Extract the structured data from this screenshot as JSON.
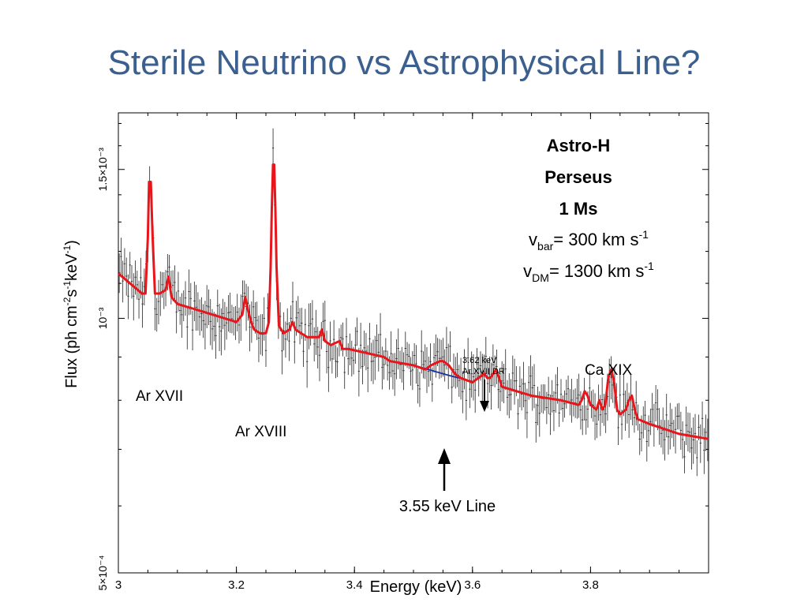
{
  "slide": {
    "title": "Sterile Neutrino vs Astrophysical Line?"
  },
  "info_box": {
    "line1": "Astro-H",
    "line2": "Perseus",
    "line3": "1 Ms",
    "v_bar": {
      "symbol": "v",
      "subscript": "bar",
      "value": "= 300 km s",
      "exponent": "-1"
    },
    "v_dm": {
      "symbol": "v",
      "subscript": "DM",
      "value": "= 1300 km s",
      "exponent": "-1"
    }
  },
  "colors": {
    "model": "#e8161b",
    "continuum": "#1a2fa8",
    "data": "#222222",
    "title": "#3b5f8e"
  },
  "chart_data": {
    "type": "line",
    "xlabel": "Energy (keV)",
    "ylabel": "Flux (ph cm-2 s-1 keV-1)",
    "ylabel_parts": {
      "a": "Flux (ph cm",
      "e1": "-2",
      "b": "s",
      "e2": "-1",
      "c": "keV",
      "e3": "-1",
      "d": ")"
    },
    "xlim": [
      3.0,
      4.0
    ],
    "ylim": [
      0.0005,
      0.00175
    ],
    "y_scale": "log",
    "x_ticks": [
      {
        "value": 3.0,
        "label": "3"
      },
      {
        "value": 3.2,
        "label": "3.2"
      },
      {
        "value": 3.4,
        "label": "3.4"
      },
      {
        "value": 3.6,
        "label": "3.6"
      },
      {
        "value": 3.8,
        "label": "3.8"
      }
    ],
    "y_ticks": [
      {
        "value": 0.0005,
        "label": "5×10⁻⁴"
      },
      {
        "value": 0.001,
        "label": "10⁻³"
      },
      {
        "value": 0.0015,
        "label": "1.5×10⁻³"
      }
    ],
    "series": [
      {
        "kind": "model",
        "x": [
          3.0,
          3.04,
          3.046,
          3.05,
          3.052,
          3.055,
          3.058,
          3.062,
          3.07,
          3.08,
          3.085,
          3.09,
          3.1,
          3.14,
          3.18,
          3.2,
          3.21,
          3.215,
          3.22,
          3.225,
          3.23,
          3.24,
          3.25,
          3.255,
          3.258,
          3.26,
          3.262,
          3.264,
          3.266,
          3.268,
          3.272,
          3.28,
          3.29,
          3.295,
          3.3,
          3.32,
          3.34,
          3.345,
          3.35,
          3.36,
          3.375,
          3.38,
          3.39,
          3.42,
          3.45,
          3.46,
          3.5,
          3.52,
          3.53,
          3.545,
          3.55,
          3.56,
          3.57,
          3.58,
          3.6,
          3.61,
          3.62,
          3.625,
          3.63,
          3.635,
          3.64,
          3.645,
          3.65,
          3.7,
          3.75,
          3.78,
          3.785,
          3.79,
          3.795,
          3.8,
          3.81,
          3.815,
          3.82,
          3.825,
          3.83,
          3.835,
          3.84,
          3.845,
          3.85,
          3.86,
          3.865,
          3.87,
          3.875,
          3.88,
          3.9,
          3.95,
          4.0
        ],
        "y": [
          0.00113,
          0.00107,
          0.00107,
          0.00125,
          0.00145,
          0.00145,
          0.00125,
          0.00107,
          0.00107,
          0.00108,
          0.00112,
          0.00106,
          0.00104,
          0.00102,
          0.001,
          0.00099,
          0.00101,
          0.00106,
          0.00102,
          0.00099,
          0.00097,
          0.00096,
          0.00096,
          0.00099,
          0.00115,
          0.00135,
          0.00152,
          0.00152,
          0.00135,
          0.00115,
          0.00098,
          0.00096,
          0.00097,
          0.00099,
          0.00097,
          0.00095,
          0.00095,
          0.00097,
          0.00094,
          0.00093,
          0.00094,
          0.00092,
          0.00092,
          0.00091,
          0.0009,
          0.00089,
          0.00088,
          0.00087,
          0.00088,
          0.00089,
          0.00089,
          0.00088,
          0.00086,
          0.00085,
          0.00084,
          0.00085,
          0.00086,
          0.00085,
          0.00085,
          0.00086,
          0.00087,
          0.00085,
          0.00083,
          0.00081,
          0.0008,
          0.00079,
          0.0008,
          0.00082,
          0.00081,
          0.00079,
          0.00078,
          0.0008,
          0.00078,
          0.00079,
          0.00085,
          0.00087,
          0.00084,
          0.00078,
          0.00077,
          0.00078,
          0.0008,
          0.00081,
          0.00078,
          0.00076,
          0.00075,
          0.00073,
          0.00072
        ]
      },
      {
        "kind": "continuum",
        "x": [
          3.5,
          3.52,
          3.54,
          3.56,
          3.58,
          3.6
        ],
        "y": [
          0.00088,
          0.000872,
          0.000864,
          0.000856,
          0.000849,
          0.000842
        ]
      }
    ],
    "annotations": [
      {
        "text": "Ar XVII"
      },
      {
        "text": "Ar XVIII"
      },
      {
        "text": "Ca XIX"
      },
      {
        "text": "3.62 keV"
      },
      {
        "text": "Ar XVII DR"
      },
      {
        "text": "3.55 keV Line"
      }
    ]
  }
}
